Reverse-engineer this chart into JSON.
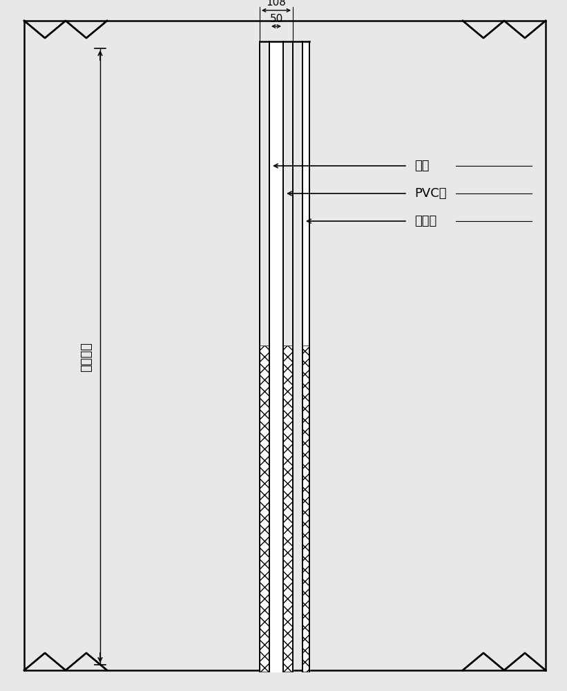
{
  "bg_color": "#e8e8e8",
  "line_color": "#000000",
  "fig_width": 8.21,
  "fig_height": 10.0,
  "dpi": 100,
  "labels": {
    "rebar": "钉筋",
    "pvc": "PVC管",
    "monitor": "监测孔",
    "depth": "设计深度"
  },
  "dim_108": "108",
  "dim_50": "50",
  "font_size_label": 13,
  "font_size_dim": 11
}
